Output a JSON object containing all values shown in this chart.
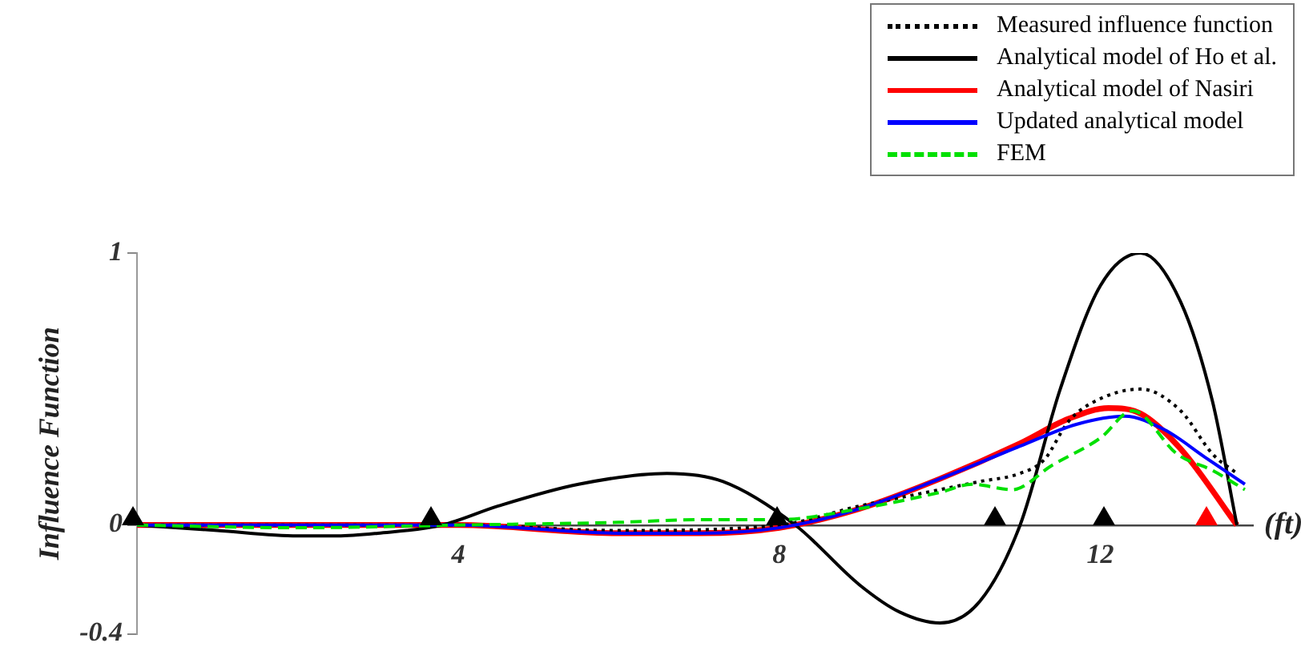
{
  "chart_data": {
    "type": "line",
    "xlabel": "(ft)",
    "ylabel": "Influence Function",
    "xlim": [
      0,
      13.9
    ],
    "ylim": [
      -0.4,
      1
    ],
    "xticks": [
      4,
      8,
      12
    ],
    "yticks": [
      1,
      0,
      -0.4
    ],
    "grid": false,
    "legend": "top right",
    "marker": "none",
    "series": [
      {
        "name": "Measured influence function",
        "color": "#000000",
        "line_style": "dotted",
        "x": [
          0,
          2,
          4,
          6,
          8,
          9,
          10,
          10.5,
          11,
          11.3,
          11.6,
          11.9,
          12.5,
          13,
          13.4,
          13.7
        ],
        "values": [
          0,
          0,
          0,
          -0.02,
          0,
          0.07,
          0.13,
          0.16,
          0.19,
          0.24,
          0.38,
          0.45,
          0.5,
          0.42,
          0.26,
          0.19
        ]
      },
      {
        "name": "Analytical model of Ho et al.",
        "color": "#000000",
        "line_style": "solid",
        "x": [
          0,
          1,
          2,
          2.5,
          3,
          3.8,
          4.5,
          5.5,
          6.6,
          7.3,
          8.2,
          9,
          9.5,
          10,
          10.5,
          11,
          11.5,
          12,
          12.5,
          13,
          13.4,
          13.7
        ],
        "values": [
          0,
          -0.02,
          -0.04,
          -0.04,
          -0.03,
          0,
          0.07,
          0.15,
          0.19,
          0.16,
          0,
          -0.22,
          -0.32,
          -0.36,
          -0.28,
          0,
          0.5,
          0.88,
          1,
          0.82,
          0.45,
          0
        ]
      },
      {
        "name": "Analytical model of Nasiri",
        "color": "#ff0000",
        "line_style": "solid",
        "x": [
          0,
          2,
          4,
          6,
          7,
          8,
          9,
          10,
          11,
          11.6,
          12.1,
          12.5,
          13,
          13.7
        ],
        "values": [
          0,
          0,
          0,
          -0.03,
          -0.03,
          -0.01,
          0.06,
          0.17,
          0.3,
          0.39,
          0.43,
          0.41,
          0.28,
          0
        ]
      },
      {
        "name": "Updated analytical model",
        "color": "#0000ff",
        "line_style": "solid",
        "x": [
          0,
          2,
          4,
          6,
          7,
          8,
          9,
          10,
          11,
          11.7,
          12.3,
          12.8,
          13.3,
          13.8
        ],
        "values": [
          0,
          0,
          0,
          -0.03,
          -0.03,
          -0.01,
          0.06,
          0.17,
          0.29,
          0.37,
          0.4,
          0.35,
          0.25,
          0.15
        ]
      },
      {
        "name": "FEM",
        "color": "#00e000",
        "line_style": "dashed",
        "x": [
          0,
          2,
          4,
          6,
          7,
          8,
          9,
          10,
          10.4,
          10.9,
          11.4,
          12,
          12.4,
          12.96,
          13.4,
          13.8
        ],
        "values": [
          0,
          -0.01,
          0,
          0.01,
          0.02,
          0.02,
          0.06,
          0.12,
          0.15,
          0.13,
          0.22,
          0.32,
          0.42,
          0.26,
          0.2,
          0.13
        ]
      }
    ]
  }
}
